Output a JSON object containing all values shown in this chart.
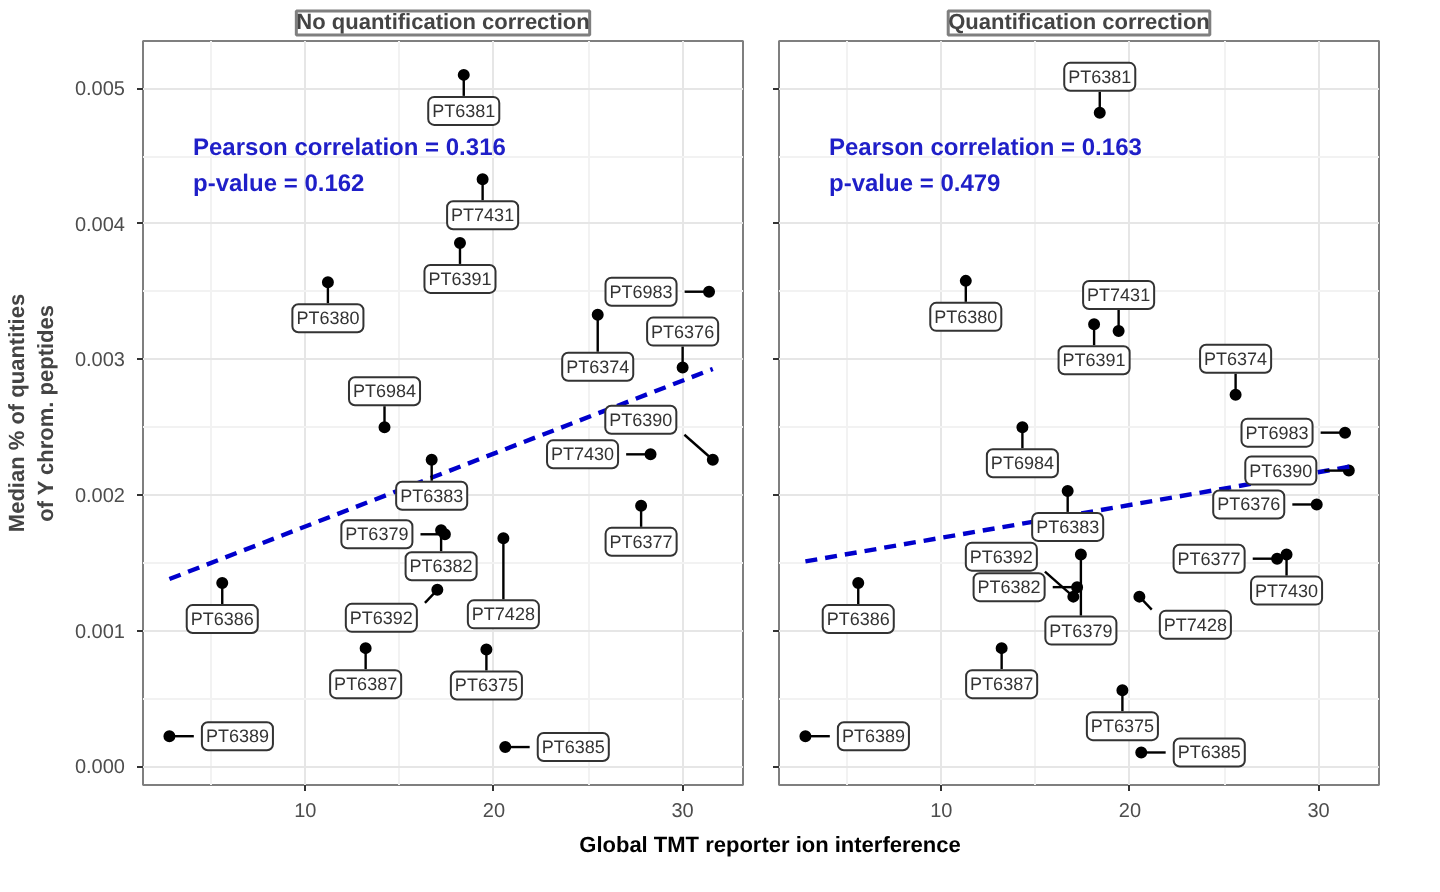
{
  "chart_data": [
    {
      "type": "scatter",
      "title": "No quantification correction",
      "xlabel": "Global TMT reporter ion interference",
      "ylabel": "Median % of quantities\nof Y chrom. peptides",
      "xlim": [
        1.4,
        33.2
      ],
      "ylim": [
        -0.00014,
        0.00535
      ],
      "xticks": [
        10,
        20,
        30
      ],
      "yticks": [
        {
          "value": 0,
          "label": "0.000"
        },
        {
          "value": 0.001,
          "label": "0.001"
        },
        {
          "value": 0.002,
          "label": "0.002"
        },
        {
          "value": 0.003,
          "label": "0.003"
        },
        {
          "value": 0.004,
          "label": "0.004"
        },
        {
          "value": 0.005,
          "label": "0.005"
        }
      ],
      "grid": true,
      "marker": "circle",
      "series": [
        {
          "type": "scatter",
          "color": "#000000",
          "x": [
            18.4,
            19.4,
            18.2,
            11.2,
            25.5,
            31.4,
            30.0,
            14.2,
            16.7,
            28.3,
            31.6,
            27.8,
            17.2,
            17.4,
            20.5,
            5.6,
            17.0,
            13.2,
            19.6,
            20.6,
            2.8
          ],
          "values": [
            0.0051,
            0.00433,
            0.00386,
            0.00357,
            0.00333,
            0.0035,
            0.00294,
            0.0025,
            0.00226,
            0.0023,
            0.00226,
            0.00192,
            0.00174,
            0.00171,
            0.00168,
            0.00135,
            0.0013,
            0.00087,
            0.00086,
            0.00014,
            0.00022
          ]
        },
        {
          "type": "line",
          "color": "#0000cc",
          "line_style": "dashed",
          "marker": "none",
          "x": [
            2.8,
            31.6
          ],
          "values": [
            0.00138,
            0.00293
          ]
        }
      ],
      "annotations": [
        "Pearson correlation = 0.316\np-value = 0.162",
        {
          "text": "PT6381",
          "x": 18.4,
          "y": 0.0051
        },
        {
          "text": "PT7431",
          "x": 19.4,
          "y": 0.00433
        },
        {
          "text": "PT6391",
          "x": 18.2,
          "y": 0.00386
        },
        {
          "text": "PT6380",
          "x": 11.2,
          "y": 0.00357
        },
        {
          "text": "PT6374",
          "x": 25.5,
          "y": 0.00333
        },
        {
          "text": "PT6983",
          "x": 31.4,
          "y": 0.0035
        },
        {
          "text": "PT6376",
          "x": 30.0,
          "y": 0.00294
        },
        {
          "text": "PT6984",
          "x": 14.2,
          "y": 0.0025
        },
        {
          "text": "PT6383",
          "x": 16.7,
          "y": 0.00226
        },
        {
          "text": "PT7430",
          "x": 28.3,
          "y": 0.0023
        },
        {
          "text": "PT6390",
          "x": 31.6,
          "y": 0.00226
        },
        {
          "text": "PT6377",
          "x": 27.8,
          "y": 0.00192
        },
        {
          "text": "PT6382",
          "x": 17.2,
          "y": 0.00174
        },
        {
          "text": "PT6379",
          "x": 17.4,
          "y": 0.00171
        },
        {
          "text": "PT7428",
          "x": 20.5,
          "y": 0.00168
        },
        {
          "text": "PT6386",
          "x": 5.6,
          "y": 0.00135
        },
        {
          "text": "PT6392",
          "x": 17.0,
          "y": 0.0013
        },
        {
          "text": "PT6387",
          "x": 13.2,
          "y": 0.00087
        },
        {
          "text": "PT6375",
          "x": 19.6,
          "y": 0.00086
        },
        {
          "text": "PT6385",
          "x": 20.6,
          "y": 0.00014
        },
        {
          "text": "PT6389",
          "x": 2.8,
          "y": 0.00022
        }
      ]
    },
    {
      "type": "scatter",
      "title": "Quantification correction",
      "xlim": [
        1.4,
        33.2
      ],
      "ylim": [
        -0.00014,
        0.00535
      ],
      "xticks": [
        10,
        20,
        30
      ],
      "yticks": [
        0,
        0.001,
        0.002,
        0.003,
        0.004,
        0.005
      ],
      "tick_labels": "x",
      "grid": true,
      "marker": "circle",
      "series": [
        {
          "type": "scatter",
          "color": "#000000",
          "x": [
            18.4,
            11.3,
            18.1,
            19.4,
            25.6,
            14.3,
            31.4,
            31.6,
            16.7,
            29.9,
            17.4,
            28.3,
            27.8,
            17.2,
            17.0,
            20.5,
            5.6,
            13.2,
            19.6,
            20.6,
            2.8
          ],
          "values": [
            0.00482,
            0.00358,
            0.00326,
            0.00321,
            0.00274,
            0.0025,
            0.00246,
            0.00218,
            0.00203,
            0.00193,
            0.00156,
            0.00156,
            0.00153,
            0.00132,
            0.00125,
            0.00125,
            0.00135,
            0.00087,
            0.00056,
            0.0001,
            0.00022
          ]
        },
        {
          "type": "line",
          "color": "#0000cc",
          "line_style": "dashed",
          "marker": "none",
          "x": [
            2.8,
            31.7
          ],
          "values": [
            0.00151,
            0.00221
          ]
        }
      ],
      "annotations": [
        "Pearson correlation = 0.163\np-value = 0.479",
        {
          "text": "PT6381",
          "x": 18.4,
          "y": 0.00482
        },
        {
          "text": "PT6380",
          "x": 11.3,
          "y": 0.00358
        },
        {
          "text": "PT6391",
          "x": 18.1,
          "y": 0.00326
        },
        {
          "text": "PT7431",
          "x": 19.4,
          "y": 0.00321
        },
        {
          "text": "PT6374",
          "x": 25.6,
          "y": 0.00274
        },
        {
          "text": "PT6984",
          "x": 14.3,
          "y": 0.0025
        },
        {
          "text": "PT6983",
          "x": 31.4,
          "y": 0.00246
        },
        {
          "text": "PT6390",
          "x": 31.6,
          "y": 0.00218
        },
        {
          "text": "PT6383",
          "x": 16.7,
          "y": 0.00203
        },
        {
          "text": "PT6376",
          "x": 29.9,
          "y": 0.00193
        },
        {
          "text": "PT6379",
          "x": 17.4,
          "y": 0.00156
        },
        {
          "text": "PT7430",
          "x": 28.3,
          "y": 0.00156
        },
        {
          "text": "PT6377",
          "x": 27.8,
          "y": 0.00153
        },
        {
          "text": "PT6382",
          "x": 17.2,
          "y": 0.00132
        },
        {
          "text": "PT6392",
          "x": 17.0,
          "y": 0.00125
        },
        {
          "text": "PT7428",
          "x": 20.5,
          "y": 0.00125
        },
        {
          "text": "PT6386",
          "x": 5.6,
          "y": 0.00135
        },
        {
          "text": "PT6387",
          "x": 13.2,
          "y": 0.00087
        },
        {
          "text": "PT6375",
          "x": 19.6,
          "y": 0.00056
        },
        {
          "text": "PT6385",
          "x": 20.6,
          "y": 0.0001
        },
        {
          "text": "PT6389",
          "x": 2.8,
          "y": 0.00022
        }
      ]
    }
  ]
}
